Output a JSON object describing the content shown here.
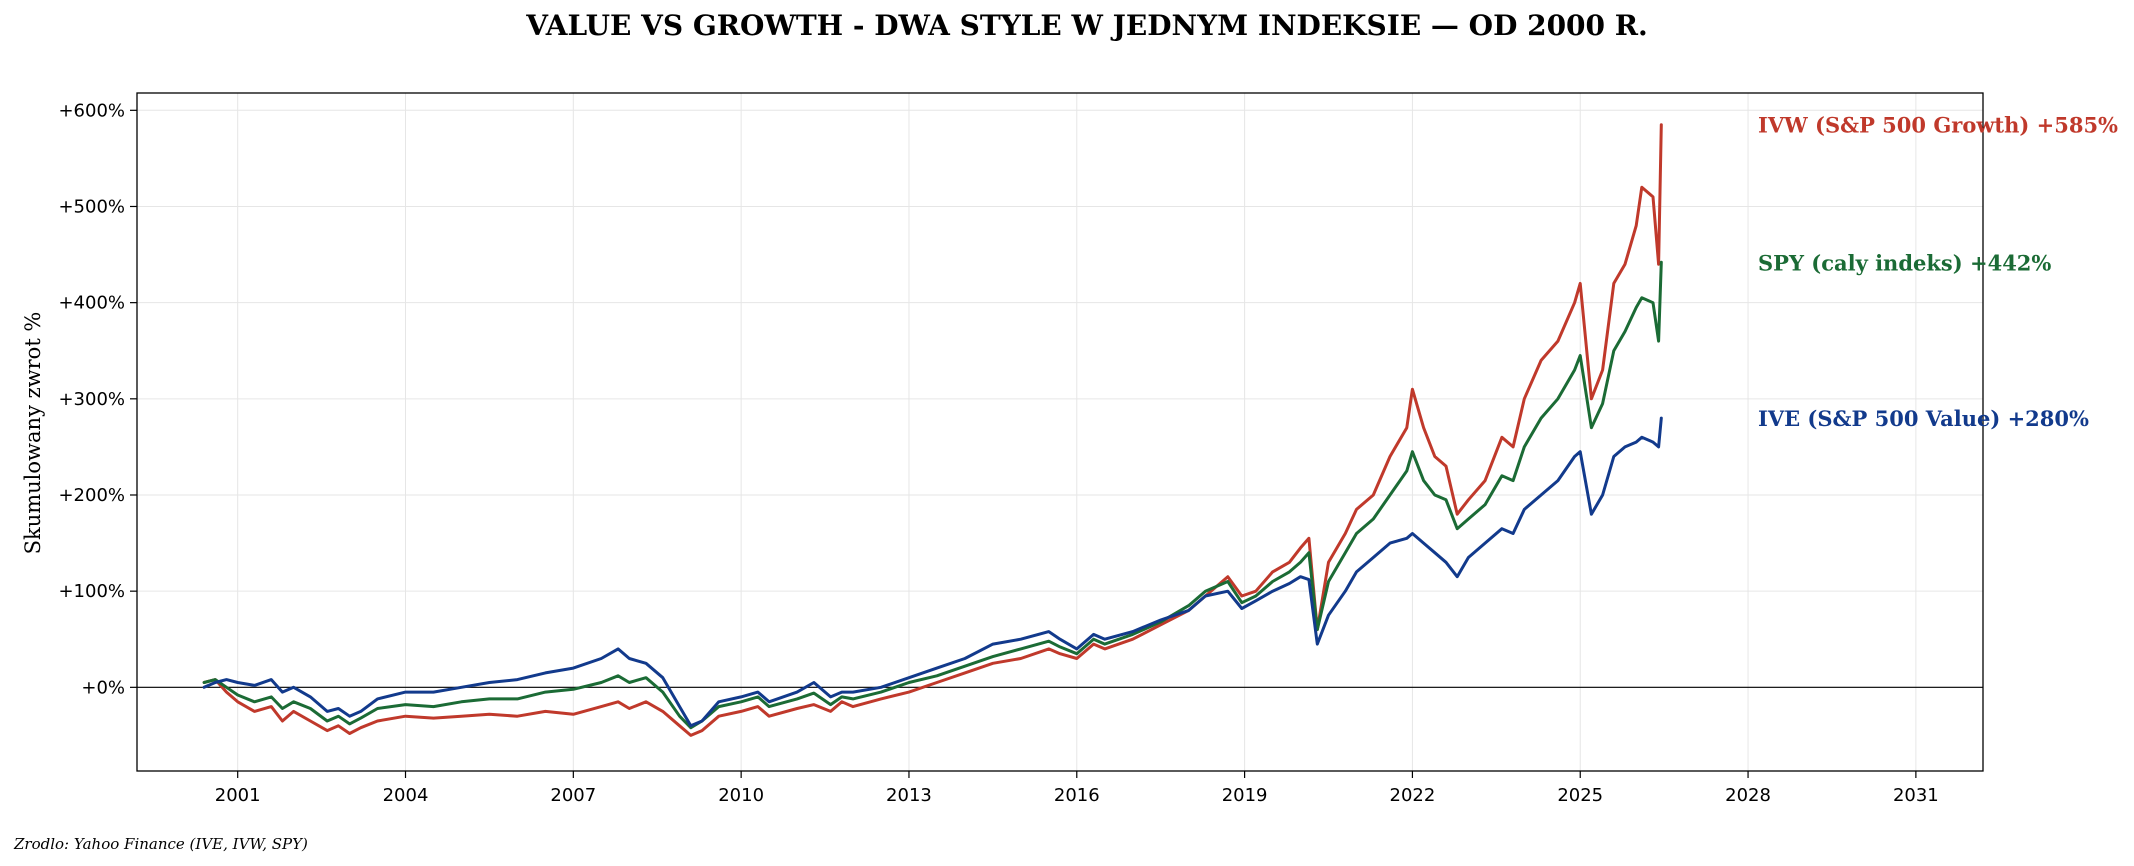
{
  "chart_data": {
    "type": "line",
    "title": "VALUE VS GROWTH - DWA STYLE W JEDNYM INDEKSIE — OD 2000 R.",
    "ylabel": "Skumulowany zwrot %",
    "xlabel": "",
    "source": "Zrodlo: Yahoo Finance (IVE, IVW, SPY)",
    "xlim": [
      1999.2,
      2032.2
    ],
    "ylim": [
      -87,
      618
    ],
    "x_ticks": [
      2001,
      2004,
      2007,
      2010,
      2013,
      2016,
      2019,
      2022,
      2025,
      2028,
      2031
    ],
    "x_tick_labels": [
      "2001",
      "2004",
      "2007",
      "2010",
      "2013",
      "2016",
      "2019",
      "2022",
      "2025",
      "2028",
      "2031"
    ],
    "y_ticks": [
      0,
      100,
      200,
      300,
      400,
      500,
      600
    ],
    "y_tick_labels": [
      "+0%",
      "+100%",
      "+200%",
      "+300%",
      "+400%",
      "+500%",
      "+600%"
    ],
    "grid": true,
    "reference_line": 0,
    "series": [
      {
        "name": "IVW (S&P 500 Growth)",
        "label": "IVW (S&P 500 Growth)  +585%",
        "color": "#c0392b",
        "x": [
          2000.4,
          2000.6,
          2000.8,
          2001.0,
          2001.3,
          2001.6,
          2001.8,
          2002.0,
          2002.3,
          2002.6,
          2002.8,
          2003.0,
          2003.2,
          2003.5,
          2004.0,
          2004.5,
          2005.0,
          2005.5,
          2006.0,
          2006.5,
          2007.0,
          2007.5,
          2007.8,
          2008.0,
          2008.3,
          2008.6,
          2008.9,
          2009.1,
          2009.3,
          2009.6,
          2010.0,
          2010.3,
          2010.5,
          2011.0,
          2011.3,
          2011.6,
          2011.8,
          2012.0,
          2012.5,
          2013.0,
          2013.5,
          2014.0,
          2014.5,
          2015.0,
          2015.5,
          2015.7,
          2016.0,
          2016.3,
          2016.5,
          2017.0,
          2017.5,
          2018.0,
          2018.3,
          2018.7,
          2018.95,
          2019.2,
          2019.5,
          2019.8,
          2020.0,
          2020.15,
          2020.3,
          2020.5,
          2020.8,
          2021.0,
          2021.3,
          2021.6,
          2021.9,
          2022.0,
          2022.2,
          2022.4,
          2022.6,
          2022.8,
          2023.0,
          2023.3,
          2023.6,
          2023.8,
          2024.0,
          2024.3,
          2024.6,
          2024.9,
          2025.0,
          2025.2,
          2025.4,
          2025.6,
          2025.8,
          2026.0,
          2026.1,
          2026.3,
          2026.4,
          2026.45
        ],
        "y": [
          5,
          8,
          -5,
          -15,
          -25,
          -20,
          -35,
          -25,
          -35,
          -45,
          -40,
          -48,
          -42,
          -35,
          -30,
          -32,
          -30,
          -28,
          -30,
          -25,
          -28,
          -20,
          -15,
          -22,
          -15,
          -25,
          -40,
          -50,
          -45,
          -30,
          -25,
          -20,
          -30,
          -22,
          -18,
          -25,
          -15,
          -20,
          -12,
          -5,
          5,
          15,
          25,
          30,
          40,
          35,
          30,
          45,
          40,
          50,
          65,
          80,
          95,
          115,
          95,
          100,
          120,
          130,
          145,
          155,
          60,
          130,
          160,
          185,
          200,
          240,
          270,
          310,
          270,
          240,
          230,
          180,
          195,
          215,
          260,
          250,
          300,
          340,
          360,
          400,
          420,
          300,
          330,
          420,
          440,
          480,
          520,
          510,
          440,
          585
        ]
      },
      {
        "name": "SPY (caly indeks)",
        "label": "SPY (caly indeks)  +442%",
        "color": "#1b6b35",
        "x": [
          2000.4,
          2000.6,
          2000.8,
          2001.0,
          2001.3,
          2001.6,
          2001.8,
          2002.0,
          2002.3,
          2002.6,
          2002.8,
          2003.0,
          2003.2,
          2003.5,
          2004.0,
          2004.5,
          2005.0,
          2005.5,
          2006.0,
          2006.5,
          2007.0,
          2007.5,
          2007.8,
          2008.0,
          2008.3,
          2008.6,
          2008.9,
          2009.1,
          2009.3,
          2009.6,
          2010.0,
          2010.3,
          2010.5,
          2011.0,
          2011.3,
          2011.6,
          2011.8,
          2012.0,
          2012.5,
          2013.0,
          2013.5,
          2014.0,
          2014.5,
          2015.0,
          2015.5,
          2015.7,
          2016.0,
          2016.3,
          2016.5,
          2017.0,
          2017.5,
          2018.0,
          2018.3,
          2018.7,
          2018.95,
          2019.2,
          2019.5,
          2019.8,
          2020.0,
          2020.15,
          2020.3,
          2020.5,
          2020.8,
          2021.0,
          2021.3,
          2021.6,
          2021.9,
          2022.0,
          2022.2,
          2022.4,
          2022.6,
          2022.8,
          2023.0,
          2023.3,
          2023.6,
          2023.8,
          2024.0,
          2024.3,
          2024.6,
          2024.9,
          2025.0,
          2025.2,
          2025.4,
          2025.6,
          2025.8,
          2026.0,
          2026.1,
          2026.3,
          2026.4,
          2026.45
        ],
        "y": [
          5,
          8,
          0,
          -8,
          -15,
          -10,
          -22,
          -15,
          -22,
          -35,
          -30,
          -38,
          -32,
          -22,
          -18,
          -20,
          -15,
          -12,
          -12,
          -5,
          -2,
          5,
          12,
          5,
          10,
          -5,
          -30,
          -42,
          -35,
          -20,
          -15,
          -10,
          -20,
          -12,
          -6,
          -18,
          -10,
          -12,
          -5,
          5,
          12,
          22,
          32,
          40,
          48,
          42,
          35,
          50,
          45,
          55,
          68,
          85,
          100,
          110,
          88,
          95,
          110,
          120,
          130,
          140,
          60,
          110,
          140,
          160,
          175,
          200,
          225,
          245,
          215,
          200,
          195,
          165,
          175,
          190,
          220,
          215,
          250,
          280,
          300,
          330,
          345,
          270,
          295,
          350,
          370,
          395,
          405,
          400,
          360,
          442
        ]
      },
      {
        "name": "IVE (S&P 500 Value)",
        "label": "IVE (S&P 500 Value)  +280%",
        "color": "#123a8c",
        "x": [
          2000.4,
          2000.6,
          2000.8,
          2001.0,
          2001.3,
          2001.6,
          2001.8,
          2002.0,
          2002.3,
          2002.6,
          2002.8,
          2003.0,
          2003.2,
          2003.5,
          2004.0,
          2004.5,
          2005.0,
          2005.5,
          2006.0,
          2006.5,
          2007.0,
          2007.5,
          2007.8,
          2008.0,
          2008.3,
          2008.6,
          2008.9,
          2009.1,
          2009.3,
          2009.6,
          2010.0,
          2010.3,
          2010.5,
          2011.0,
          2011.3,
          2011.6,
          2011.8,
          2012.0,
          2012.5,
          2013.0,
          2013.5,
          2014.0,
          2014.5,
          2015.0,
          2015.5,
          2015.7,
          2016.0,
          2016.3,
          2016.5,
          2017.0,
          2017.5,
          2018.0,
          2018.3,
          2018.7,
          2018.95,
          2019.2,
          2019.5,
          2019.8,
          2020.0,
          2020.15,
          2020.3,
          2020.5,
          2020.8,
          2021.0,
          2021.3,
          2021.6,
          2021.9,
          2022.0,
          2022.2,
          2022.4,
          2022.6,
          2022.8,
          2023.0,
          2023.3,
          2023.6,
          2023.8,
          2024.0,
          2024.3,
          2024.6,
          2024.9,
          2025.0,
          2025.2,
          2025.4,
          2025.6,
          2025.8,
          2026.0,
          2026.1,
          2026.3,
          2026.4,
          2026.45
        ],
        "y": [
          0,
          5,
          8,
          5,
          2,
          8,
          -5,
          0,
          -10,
          -25,
          -22,
          -30,
          -25,
          -12,
          -5,
          -5,
          0,
          5,
          8,
          15,
          20,
          30,
          40,
          30,
          25,
          10,
          -20,
          -40,
          -35,
          -15,
          -10,
          -5,
          -15,
          -5,
          5,
          -10,
          -5,
          -5,
          0,
          10,
          20,
          30,
          45,
          50,
          58,
          50,
          40,
          55,
          50,
          58,
          70,
          80,
          95,
          100,
          82,
          90,
          100,
          108,
          115,
          112,
          45,
          75,
          100,
          120,
          135,
          150,
          155,
          160,
          150,
          140,
          130,
          115,
          135,
          150,
          165,
          160,
          185,
          200,
          215,
          240,
          245,
          180,
          200,
          240,
          250,
          255,
          260,
          255,
          250,
          280
        ]
      }
    ]
  }
}
